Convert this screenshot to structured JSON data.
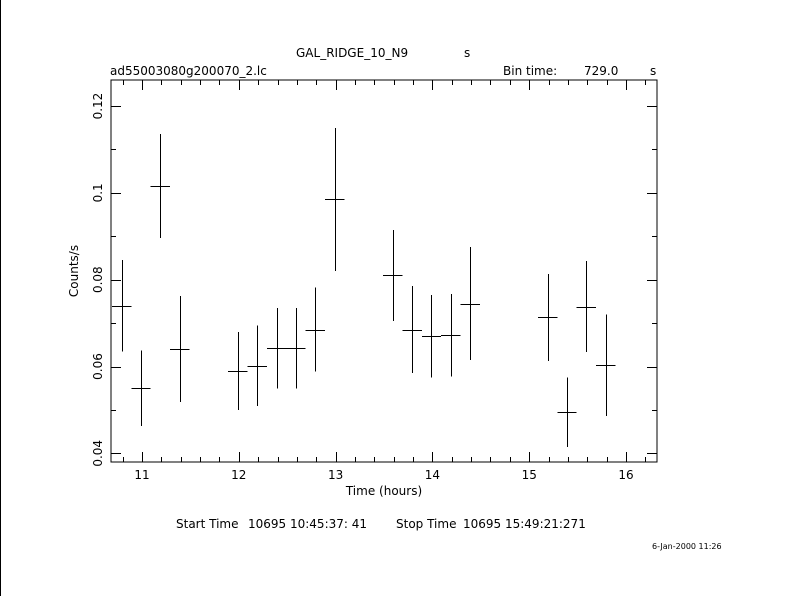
{
  "header": {
    "title": "GAL_RIDGE_10_N9",
    "title_unit": "s",
    "filename": "ad55003080g200070_2.lc",
    "bin_label": "Bin time:",
    "bin_value": "729.0",
    "bin_unit": "s"
  },
  "footer": {
    "start_label": "Start Time",
    "start_value": "10695 10:45:37: 41",
    "stop_label": "Stop Time",
    "stop_value": "10695 15:49:21:271",
    "date_stamp": "6-Jan-2000 11:26"
  },
  "colors": {
    "ink": "#000000",
    "background": "#ffffff"
  },
  "chart_data": {
    "type": "scatter",
    "title": "GAL_RIDGE_10_N9",
    "xlabel": "Time (hours)",
    "ylabel": "Counts/s",
    "xlim": [
      10.68,
      16.32
    ],
    "ylim": [
      0.038,
      0.126
    ],
    "xticks": [
      11,
      12,
      13,
      14,
      15,
      16
    ],
    "yticks": [
      0.04,
      0.06,
      0.08,
      0.1,
      0.12
    ],
    "ytick_labels": [
      "0.04",
      "0.06",
      "0.08",
      "0.1",
      "0.12"
    ],
    "grid": false,
    "error_bars": true,
    "points": [
      {
        "x": 10.79,
        "y": 0.074,
        "xerr": 0.1,
        "yerr": 0.0105
      },
      {
        "x": 10.99,
        "y": 0.055,
        "xerr": 0.1,
        "yerr": 0.0087
      },
      {
        "x": 11.19,
        "y": 0.1016,
        "xerr": 0.1,
        "yerr": 0.012
      },
      {
        "x": 11.39,
        "y": 0.064,
        "xerr": 0.1,
        "yerr": 0.0122
      },
      {
        "x": 11.99,
        "y": 0.059,
        "xerr": 0.1,
        "yerr": 0.009
      },
      {
        "x": 12.19,
        "y": 0.0602,
        "xerr": 0.1,
        "yerr": 0.0093
      },
      {
        "x": 12.39,
        "y": 0.0642,
        "xerr": 0.1,
        "yerr": 0.0093
      },
      {
        "x": 12.59,
        "y": 0.0642,
        "xerr": 0.1,
        "yerr": 0.0093
      },
      {
        "x": 12.79,
        "y": 0.0685,
        "xerr": 0.1,
        "yerr": 0.0097
      },
      {
        "x": 12.99,
        "y": 0.0985,
        "xerr": 0.1,
        "yerr": 0.0165
      },
      {
        "x": 13.59,
        "y": 0.081,
        "xerr": 0.1,
        "yerr": 0.0105
      },
      {
        "x": 13.79,
        "y": 0.0685,
        "xerr": 0.1,
        "yerr": 0.01
      },
      {
        "x": 13.99,
        "y": 0.067,
        "xerr": 0.1,
        "yerr": 0.0095
      },
      {
        "x": 14.19,
        "y": 0.0672,
        "xerr": 0.1,
        "yerr": 0.0095
      },
      {
        "x": 14.39,
        "y": 0.0745,
        "xerr": 0.1,
        "yerr": 0.013
      },
      {
        "x": 15.19,
        "y": 0.0713,
        "xerr": 0.1,
        "yerr": 0.01
      },
      {
        "x": 15.39,
        "y": 0.0495,
        "xerr": 0.1,
        "yerr": 0.008
      },
      {
        "x": 15.59,
        "y": 0.0738,
        "xerr": 0.1,
        "yerr": 0.0105
      },
      {
        "x": 15.79,
        "y": 0.0603,
        "xerr": 0.1,
        "yerr": 0.0117
      }
    ]
  }
}
